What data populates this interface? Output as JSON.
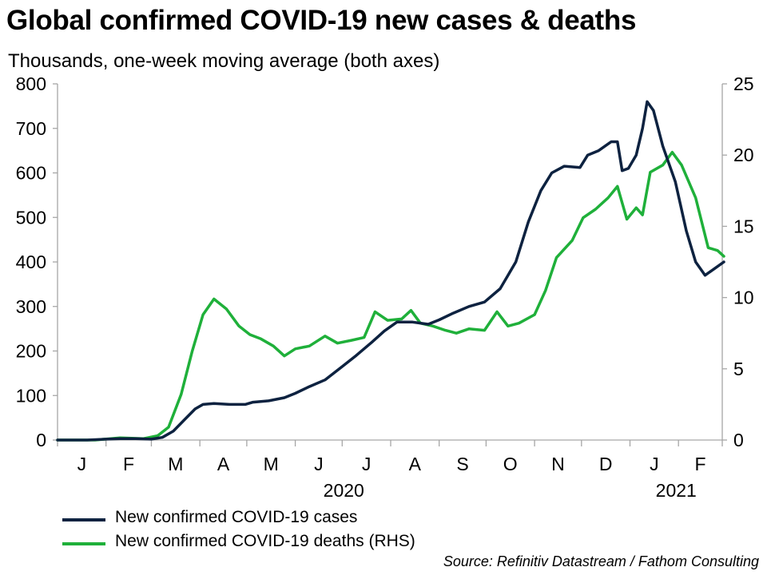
{
  "chart_data": {
    "type": "line",
    "title": "Global confirmed COVID-19 new cases & deaths",
    "subtitle": "Thousands, one-week moving average (both axes)",
    "source": "Source: Refinitiv Datastream / Fathom Consulting",
    "x_axis": {
      "month_labels": [
        "J",
        "F",
        "M",
        "A",
        "M",
        "J",
        "J",
        "A",
        "S",
        "O",
        "N",
        "D",
        "J",
        "F"
      ],
      "year_labels": [
        "2020",
        "2021"
      ]
    },
    "y_left": {
      "ticks": [
        "0",
        "100",
        "200",
        "300",
        "400",
        "500",
        "600",
        "700",
        "800"
      ],
      "ylim": [
        0,
        800
      ]
    },
    "y_right": {
      "ticks": [
        "0",
        "5",
        "10",
        "15",
        "20",
        "25"
      ],
      "ylim": [
        0,
        25
      ]
    },
    "grid": false,
    "legend_position": "bottom-left",
    "colors": {
      "cases": "#0d2240",
      "deaths": "#1fb03a",
      "axis": "#a6a6a6"
    },
    "series": [
      {
        "key": "cases",
        "name": "New confirmed COVID-19 cases",
        "axis": "left",
        "points": [
          [
            "2020-01-01",
            0
          ],
          [
            "2020-01-20",
            0
          ],
          [
            "2020-02-01",
            2
          ],
          [
            "2020-02-10",
            3
          ],
          [
            "2020-02-20",
            3
          ],
          [
            "2020-03-01",
            2
          ],
          [
            "2020-03-08",
            6
          ],
          [
            "2020-03-15",
            20
          ],
          [
            "2020-03-22",
            45
          ],
          [
            "2020-03-29",
            70
          ],
          [
            "2020-04-03",
            80
          ],
          [
            "2020-04-10",
            82
          ],
          [
            "2020-04-20",
            80
          ],
          [
            "2020-04-30",
            80
          ],
          [
            "2020-05-05",
            85
          ],
          [
            "2020-05-15",
            88
          ],
          [
            "2020-05-25",
            95
          ],
          [
            "2020-06-01",
            105
          ],
          [
            "2020-06-10",
            120
          ],
          [
            "2020-06-20",
            135
          ],
          [
            "2020-07-01",
            165
          ],
          [
            "2020-07-10",
            190
          ],
          [
            "2020-07-20",
            220
          ],
          [
            "2020-07-28",
            245
          ],
          [
            "2020-08-05",
            265
          ],
          [
            "2020-08-15",
            265
          ],
          [
            "2020-08-25",
            260
          ],
          [
            "2020-09-01",
            270
          ],
          [
            "2020-09-10",
            285
          ],
          [
            "2020-09-20",
            300
          ],
          [
            "2020-09-30",
            310
          ],
          [
            "2020-10-10",
            340
          ],
          [
            "2020-10-20",
            400
          ],
          [
            "2020-10-28",
            490
          ],
          [
            "2020-11-05",
            560
          ],
          [
            "2020-11-12",
            600
          ],
          [
            "2020-11-20",
            615
          ],
          [
            "2020-11-30",
            612
          ],
          [
            "2020-12-05",
            640
          ],
          [
            "2020-12-12",
            650
          ],
          [
            "2020-12-20",
            670
          ],
          [
            "2020-12-24",
            670
          ],
          [
            "2020-12-27",
            605
          ],
          [
            "2020-12-31",
            610
          ],
          [
            "2021-01-05",
            640
          ],
          [
            "2021-01-09",
            700
          ],
          [
            "2021-01-12",
            760
          ],
          [
            "2021-01-16",
            740
          ],
          [
            "2021-01-22",
            660
          ],
          [
            "2021-01-30",
            580
          ],
          [
            "2021-02-06",
            470
          ],
          [
            "2021-02-12",
            400
          ],
          [
            "2021-02-18",
            370
          ],
          [
            "2021-02-24",
            385
          ],
          [
            "2021-03-02",
            400
          ]
        ]
      },
      {
        "key": "deaths",
        "name": "New confirmed COVID-19 deaths (RHS)",
        "axis": "right",
        "points": [
          [
            "2020-01-01",
            0
          ],
          [
            "2020-01-25",
            0
          ],
          [
            "2020-02-10",
            0.15
          ],
          [
            "2020-02-25",
            0.1
          ],
          [
            "2020-03-05",
            0.3
          ],
          [
            "2020-03-12",
            0.9
          ],
          [
            "2020-03-20",
            3.2
          ],
          [
            "2020-03-27",
            6.2
          ],
          [
            "2020-04-03",
            8.8
          ],
          [
            "2020-04-10",
            9.9
          ],
          [
            "2020-04-18",
            9.2
          ],
          [
            "2020-04-26",
            8
          ],
          [
            "2020-05-03",
            7.4
          ],
          [
            "2020-05-10",
            7.1
          ],
          [
            "2020-05-18",
            6.6
          ],
          [
            "2020-05-25",
            5.9
          ],
          [
            "2020-06-01",
            6.4
          ],
          [
            "2020-06-10",
            6.6
          ],
          [
            "2020-06-20",
            7.3
          ],
          [
            "2020-06-28",
            6.8
          ],
          [
            "2020-07-07",
            7.0
          ],
          [
            "2020-07-15",
            7.2
          ],
          [
            "2020-07-22",
            9.0
          ],
          [
            "2020-07-30",
            8.4
          ],
          [
            "2020-08-08",
            8.5
          ],
          [
            "2020-08-14",
            9.1
          ],
          [
            "2020-08-20",
            8.2
          ],
          [
            "2020-08-28",
            8.0
          ],
          [
            "2020-09-05",
            7.7
          ],
          [
            "2020-09-12",
            7.5
          ],
          [
            "2020-09-20",
            7.8
          ],
          [
            "2020-09-30",
            7.7
          ],
          [
            "2020-10-08",
            9.0
          ],
          [
            "2020-10-15",
            8.0
          ],
          [
            "2020-10-22",
            8.2
          ],
          [
            "2020-11-01",
            8.8
          ],
          [
            "2020-11-08",
            10.5
          ],
          [
            "2020-11-15",
            12.8
          ],
          [
            "2020-11-25",
            14.0
          ],
          [
            "2020-12-02",
            15.6
          ],
          [
            "2020-12-10",
            16.2
          ],
          [
            "2020-12-18",
            17.0
          ],
          [
            "2020-12-24",
            17.8
          ],
          [
            "2020-12-30",
            15.5
          ],
          [
            "2021-01-05",
            16.3
          ],
          [
            "2021-01-09",
            15.8
          ],
          [
            "2021-01-14",
            18.8
          ],
          [
            "2021-01-22",
            19.3
          ],
          [
            "2021-01-28",
            20.2
          ],
          [
            "2021-02-03",
            19.3
          ],
          [
            "2021-02-12",
            17.0
          ],
          [
            "2021-02-20",
            13.5
          ],
          [
            "2021-02-26",
            13.3
          ],
          [
            "2021-03-02",
            12.9
          ]
        ]
      }
    ]
  }
}
